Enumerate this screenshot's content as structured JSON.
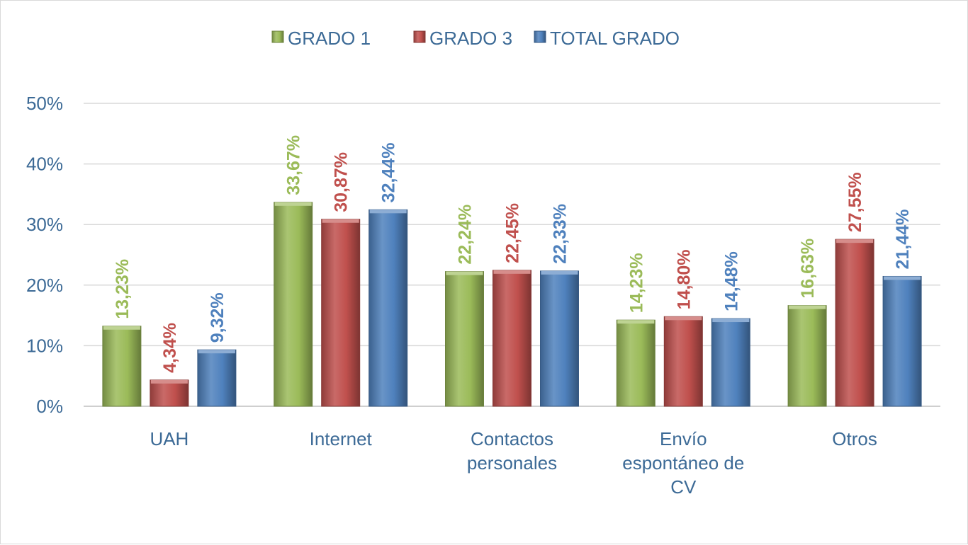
{
  "chart_data": {
    "type": "bar",
    "title": "",
    "xlabel": "",
    "ylabel": "",
    "ylim": [
      0,
      50
    ],
    "y_ticks": [
      0,
      10,
      20,
      30,
      40,
      50
    ],
    "y_tick_labels": [
      "0%",
      "10%",
      "20%",
      "30%",
      "40%",
      "50%"
    ],
    "grid": true,
    "legend_position": "top",
    "categories": [
      [
        "UAH"
      ],
      [
        "Internet"
      ],
      [
        "Contactos",
        "personales"
      ],
      [
        "Envío",
        "espontáneo de",
        "CV"
      ],
      [
        "Otros"
      ]
    ],
    "series": [
      {
        "name": "GRADO 1",
        "color": "#9bbb59",
        "label_color": "#9bbb59",
        "values": [
          13.23,
          33.67,
          22.24,
          14.23,
          16.63
        ],
        "labels": [
          "13,23%",
          "33,67%",
          "22,24%",
          "14,23%",
          "16,63%"
        ]
      },
      {
        "name": "GRADO 3",
        "color": "#c0504d",
        "label_color": "#c0504d",
        "values": [
          4.34,
          30.87,
          22.45,
          14.8,
          27.55
        ],
        "labels": [
          "4,34%",
          "30,87%",
          "22,45%",
          "14,80%",
          "27,55%"
        ]
      },
      {
        "name": "TOTAL GRADO",
        "color": "#4f81bd",
        "label_color": "#4f81bd",
        "values": [
          9.32,
          32.44,
          22.33,
          14.48,
          21.44
        ],
        "labels": [
          "9,32%",
          "32,44%",
          "22,33%",
          "14,48%",
          "21,44%"
        ]
      }
    ]
  }
}
